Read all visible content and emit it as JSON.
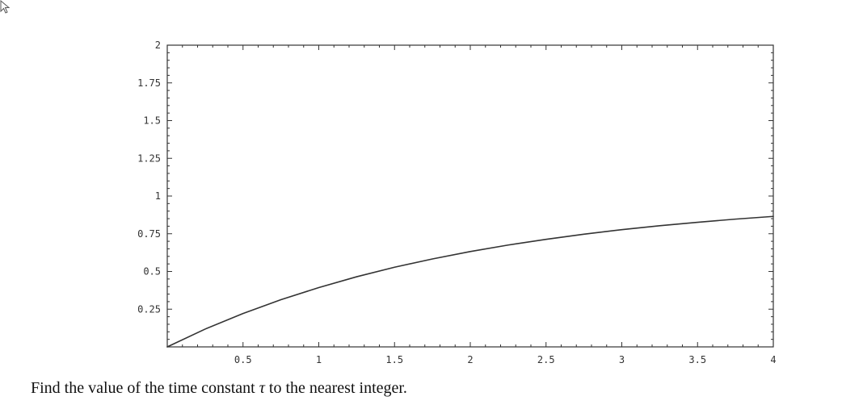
{
  "question": {
    "before": "Find the value of the time constant ",
    "symbol": "τ",
    "after": " to the nearest integer."
  },
  "chart_data": {
    "type": "line",
    "title": "",
    "xlabel": "",
    "ylabel": "",
    "xlim": [
      0,
      4
    ],
    "ylim": [
      0,
      2
    ],
    "xticks": [
      0.5,
      1,
      1.5,
      2,
      2.5,
      3,
      3.5,
      4
    ],
    "xtick_labels": [
      "0.5",
      "1",
      "1.5",
      "2",
      "2.5",
      "3",
      "3.5",
      "4"
    ],
    "yticks": [
      0.25,
      0.5,
      0.75,
      1,
      1.25,
      1.5,
      1.75,
      2
    ],
    "ytick_labels": [
      "0.25",
      "0.5",
      "0.75",
      "1",
      "1.25",
      "1.5",
      "1.75",
      "2"
    ],
    "grid": false,
    "frame": true,
    "line_color": "#333333",
    "series": [
      {
        "x": [
          0,
          0.25,
          0.5,
          0.75,
          1,
          1.25,
          1.5,
          1.75,
          2,
          2.25,
          2.5,
          2.75,
          3,
          3.25,
          3.5,
          3.75,
          4
        ],
        "y": [
          0,
          0.118,
          0.221,
          0.313,
          0.393,
          0.465,
          0.528,
          0.583,
          0.632,
          0.675,
          0.713,
          0.747,
          0.777,
          0.803,
          0.826,
          0.847,
          0.865
        ]
      }
    ]
  }
}
